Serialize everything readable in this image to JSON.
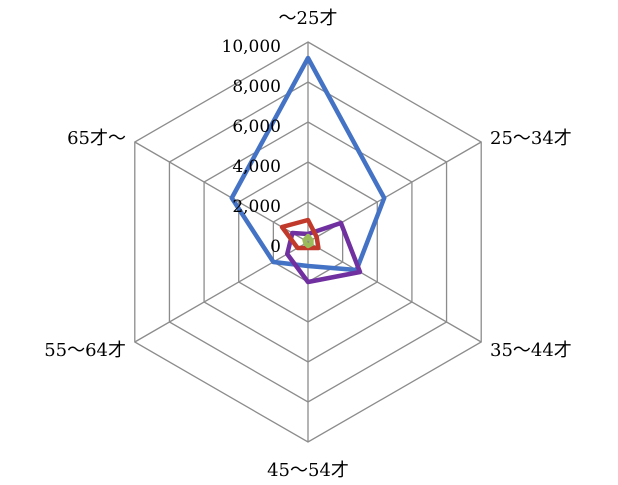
{
  "chart_data": {
    "type": "radar",
    "title": "",
    "categories": [
      "～25才",
      "25～34才",
      "35～44才",
      "45～54才",
      "55～64才",
      "65才～"
    ],
    "rmin": 0,
    "rmax": 10000,
    "ticks": [
      0,
      2000,
      4000,
      6000,
      8000,
      10000
    ],
    "tick_labels": [
      "0",
      "2,000",
      "4,000",
      "6,000",
      "8,000",
      "10,000"
    ],
    "grid": true,
    "legend": "none",
    "series": [
      {
        "color": "#4472C4",
        "values": [
          9200,
          4400,
          2800,
          1200,
          2000,
          4400
        ]
      },
      {
        "color": "#70309F",
        "values": [
          400,
          1900,
          3000,
          2000,
          1200,
          900
        ]
      },
      {
        "color": "#C0392B",
        "values": [
          1100,
          500,
          600,
          300,
          600,
          1500
        ]
      },
      {
        "color": "#9BBB59",
        "values": [
          300,
          200,
          200,
          200,
          150,
          200
        ]
      }
    ]
  }
}
